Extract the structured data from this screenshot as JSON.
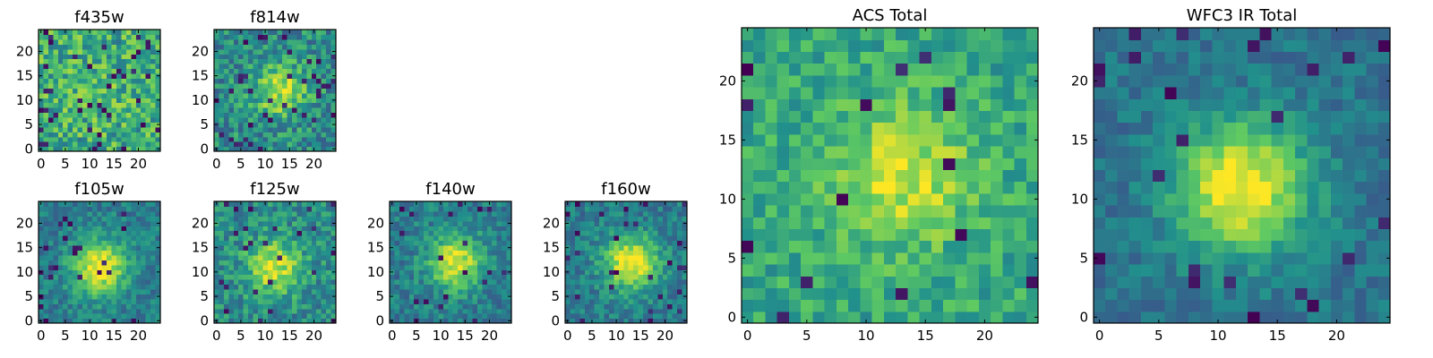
{
  "figure": {
    "colormap": "viridis",
    "colormap_stops": [
      "#440154",
      "#3b528b",
      "#21918c",
      "#5ec962",
      "#fde725"
    ]
  },
  "chart_data": [
    {
      "type": "heatmap",
      "title": "f435w",
      "grid_size": [
        25,
        25
      ],
      "xlim": [
        -0.5,
        24.5
      ],
      "ylim": [
        -0.5,
        24.5
      ],
      "xticks": [
        0,
        5,
        10,
        15,
        20
      ],
      "yticks": [
        0,
        5,
        10,
        15,
        20
      ],
      "peak": [
        12,
        12
      ],
      "concentration": 0.05,
      "base_level": 0.62,
      "noise": 0.24,
      "dark_pixel_fraction": 0.06,
      "seed": 11
    },
    {
      "type": "heatmap",
      "title": "f814w",
      "grid_size": [
        25,
        25
      ],
      "xlim": [
        -0.5,
        24.5
      ],
      "ylim": [
        -0.5,
        24.5
      ],
      "xticks": [
        0,
        5,
        10,
        15,
        20
      ],
      "yticks": [
        0,
        5,
        10,
        15,
        20
      ],
      "peak": [
        13,
        12
      ],
      "concentration": 0.4,
      "base_level": 0.48,
      "noise": 0.2,
      "dark_pixel_fraction": 0.05,
      "seed": 23
    },
    {
      "type": "heatmap",
      "title": "f105w",
      "grid_size": [
        25,
        25
      ],
      "xlim": [
        -0.5,
        24.5
      ],
      "ylim": [
        -0.5,
        24.5
      ],
      "xticks": [
        0,
        5,
        10,
        15,
        20
      ],
      "yticks": [
        0,
        5,
        10,
        15,
        20
      ],
      "peak": [
        12,
        11
      ],
      "concentration": 0.6,
      "base_level": 0.42,
      "noise": 0.13,
      "dark_pixel_fraction": 0.04,
      "seed": 37
    },
    {
      "type": "heatmap",
      "title": "f125w",
      "grid_size": [
        25,
        25
      ],
      "xlim": [
        -0.5,
        24.5
      ],
      "ylim": [
        -0.5,
        24.5
      ],
      "xticks": [
        0,
        5,
        10,
        15,
        20
      ],
      "yticks": [
        0,
        5,
        10,
        15,
        20
      ],
      "peak": [
        12,
        11
      ],
      "concentration": 0.45,
      "base_level": 0.48,
      "noise": 0.17,
      "dark_pixel_fraction": 0.05,
      "seed": 41
    },
    {
      "type": "heatmap",
      "title": "f140w",
      "grid_size": [
        25,
        25
      ],
      "xlim": [
        -0.5,
        24.5
      ],
      "ylim": [
        -0.5,
        24.5
      ],
      "xticks": [
        0,
        5,
        10,
        15,
        20
      ],
      "yticks": [
        0,
        5,
        10,
        15,
        20
      ],
      "peak": [
        13,
        12
      ],
      "concentration": 0.55,
      "base_level": 0.42,
      "noise": 0.14,
      "dark_pixel_fraction": 0.04,
      "seed": 53
    },
    {
      "type": "heatmap",
      "title": "f160w",
      "grid_size": [
        25,
        25
      ],
      "xlim": [
        -0.5,
        24.5
      ],
      "ylim": [
        -0.5,
        24.5
      ],
      "xticks": [
        0,
        5,
        10,
        15,
        20
      ],
      "yticks": [
        0,
        5,
        10,
        15,
        20
      ],
      "peak": [
        13,
        12
      ],
      "concentration": 0.6,
      "base_level": 0.42,
      "noise": 0.13,
      "dark_pixel_fraction": 0.04,
      "seed": 67
    },
    {
      "type": "heatmap",
      "title": "ACS Total",
      "grid_size": [
        25,
        25
      ],
      "xlim": [
        -0.5,
        24.5
      ],
      "ylim": [
        -0.5,
        24.5
      ],
      "xticks": [
        0,
        5,
        10,
        15,
        20
      ],
      "yticks": [
        0,
        5,
        10,
        15,
        20
      ],
      "peak": [
        13,
        12
      ],
      "concentration": 0.35,
      "base_level": 0.6,
      "noise": 0.15,
      "dark_pixel_fraction": 0.03,
      "seed": 79
    },
    {
      "type": "heatmap",
      "title": "WFC3 IR Total",
      "grid_size": [
        25,
        25
      ],
      "xlim": [
        -0.5,
        24.5
      ],
      "ylim": [
        -0.5,
        24.5
      ],
      "xticks": [
        0,
        5,
        10,
        15,
        20
      ],
      "yticks": [
        0,
        5,
        10,
        15,
        20
      ],
      "peak": [
        12,
        11
      ],
      "concentration": 0.65,
      "base_level": 0.38,
      "noise": 0.1,
      "dark_pixel_fraction": 0.04,
      "seed": 97
    }
  ]
}
